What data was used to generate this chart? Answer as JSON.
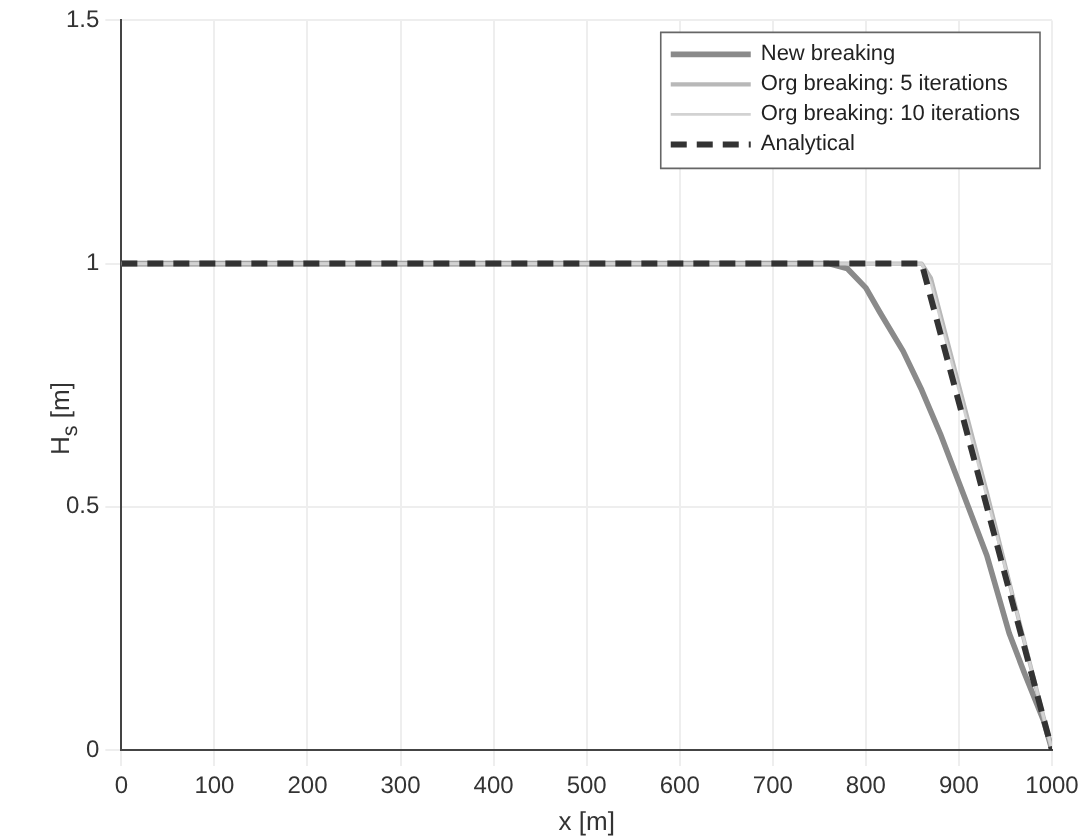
{
  "chart_data": {
    "type": "line",
    "xlabel": "x [m]",
    "ylabel": "H$_{s}$ [m]",
    "xlim": [
      0,
      1000
    ],
    "xticks": [
      0,
      100,
      200,
      300,
      400,
      500,
      600,
      700,
      800,
      900,
      1000
    ],
    "ylim": [
      0,
      1.5
    ],
    "yticks": [
      0,
      0.5,
      1,
      1.5
    ],
    "grid": true,
    "legend": "top right",
    "marker": "none",
    "series": [
      {
        "name": "New breaking",
        "color": "#8a8a8a",
        "line_style": "solid",
        "x": [
          0,
          760,
          780,
          800,
          815,
          840,
          860,
          880,
          900,
          910,
          930,
          954,
          970,
          991,
          1000
        ],
        "values": [
          1,
          1,
          0.99,
          0.95,
          0.9,
          0.82,
          0.74,
          0.65,
          0.55,
          0.5,
          0.4,
          0.24,
          0.16,
          0.06,
          0
        ]
      },
      {
        "name": "Org breaking: 5 iterations",
        "color": "#b8b8b8",
        "line_style": "solid",
        "x": [
          0,
          860,
          870,
          900,
          930,
          960,
          980,
          1000
        ],
        "values": [
          1,
          1,
          0.97,
          0.75,
          0.53,
          0.3,
          0.15,
          0
        ]
      },
      {
        "name": "Org breaking: 10 iterations",
        "color": "#d2d2d2",
        "line_style": "solid",
        "x": [
          0,
          860,
          870,
          900,
          930,
          960,
          980,
          1000
        ],
        "values": [
          1,
          1,
          0.96,
          0.74,
          0.52,
          0.3,
          0.15,
          0
        ]
      },
      {
        "name": "Analytical",
        "color": "#333333",
        "line_style": "dashed",
        "x": [
          0,
          860,
          1000
        ],
        "values": [
          1,
          1,
          0
        ]
      }
    ]
  }
}
